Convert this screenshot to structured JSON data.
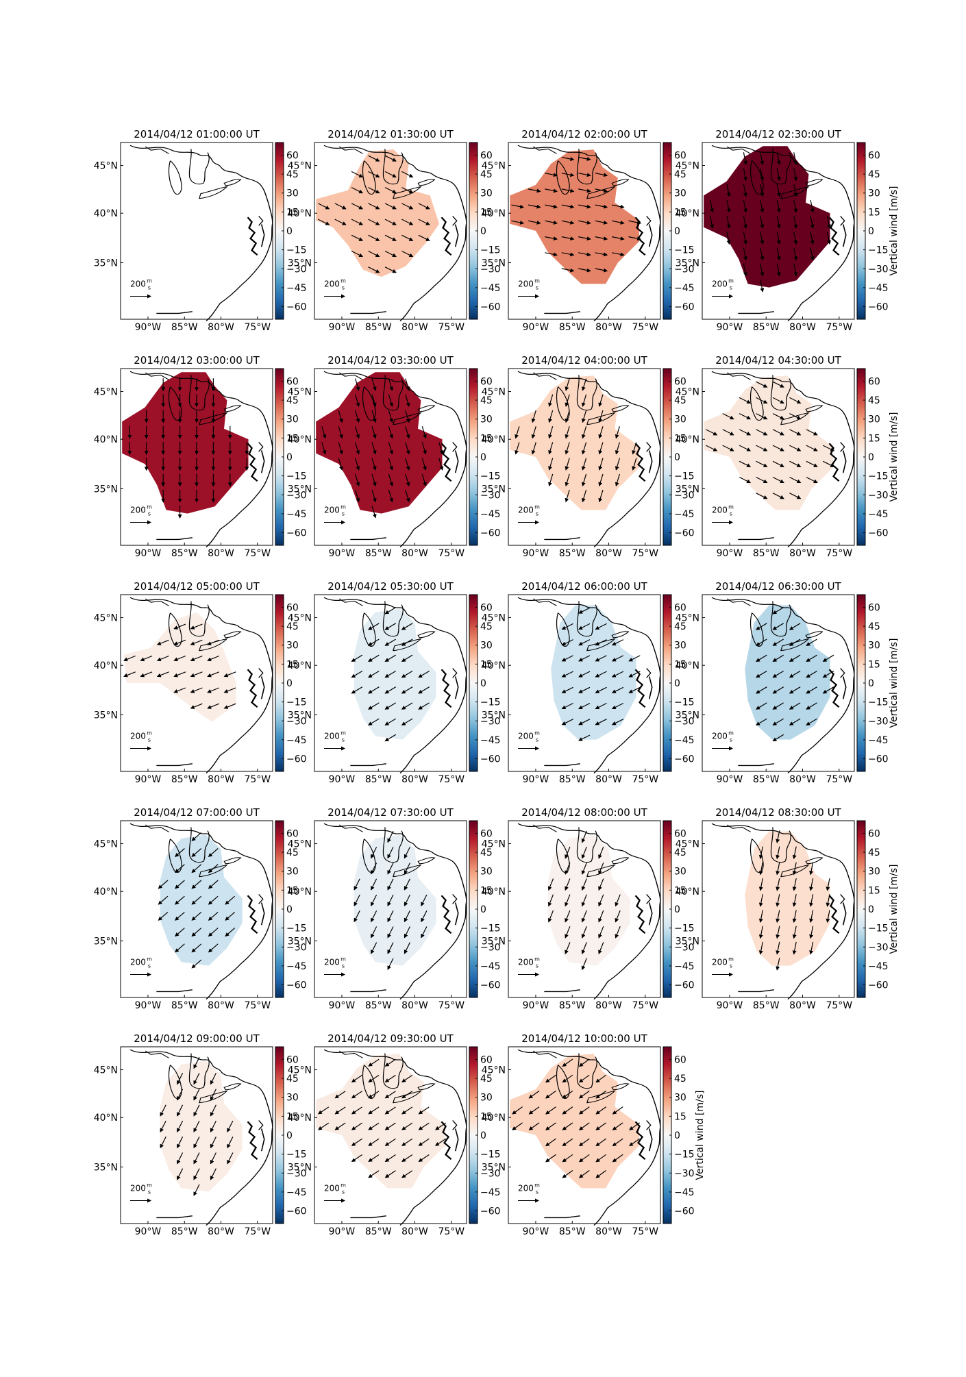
{
  "figure": {
    "colorbar_label": "Vertical wind [m/s]",
    "colorbar_ticks": [
      "60",
      "45",
      "30",
      "15",
      "0",
      "−15",
      "−30",
      "−45",
      "−60"
    ],
    "colorbar_tick_values": [
      60,
      45,
      30,
      15,
      0,
      -15,
      -30,
      -45,
      -60
    ],
    "colorbar_range": [
      -70,
      70
    ],
    "colormap": "RdBu_r",
    "lat_ticks": [
      "45°N",
      "40°N",
      "35°N"
    ],
    "lon_ticks": [
      "90°W",
      "85°W",
      "80°W",
      "75°W"
    ],
    "scale_label": "200",
    "scale_unit_num": "m",
    "scale_unit_den": "s"
  },
  "chart_data": [
    {
      "type": "heatmap",
      "title": "2014/04/12 01:00:00 UT",
      "vertical_wind": null,
      "wind_dir": null,
      "coverage": "none",
      "xlim": [
        -94,
        -74
      ],
      "ylim": [
        31,
        47.5
      ]
    },
    {
      "type": "heatmap",
      "title": "2014/04/12 01:30:00 UT",
      "vertical_wind": 20,
      "wind_dir": [
        1,
        -0.5
      ],
      "coverage": "north",
      "xlim": [
        -94,
        -74
      ],
      "ylim": [
        31,
        47.5
      ]
    },
    {
      "type": "heatmap",
      "title": "2014/04/12 02:00:00 UT",
      "vertical_wind": 35,
      "wind_dir": [
        1,
        -0.2
      ],
      "coverage": "full",
      "xlim": [
        -94,
        -74
      ],
      "ylim": [
        31,
        47.5
      ]
    },
    {
      "type": "heatmap",
      "title": "2014/04/12 02:30:00 UT",
      "vertical_wind": 70,
      "wind_dir": [
        0.2,
        -1
      ],
      "coverage": "big",
      "xlim": [
        -94,
        -74
      ],
      "ylim": [
        31,
        47.5
      ]
    },
    {
      "type": "heatmap",
      "title": "2014/04/12 03:00:00 UT",
      "vertical_wind": 60,
      "wind_dir": [
        0,
        -1
      ],
      "coverage": "big",
      "xlim": [
        -94,
        -74
      ],
      "ylim": [
        31,
        47.5
      ]
    },
    {
      "type": "heatmap",
      "title": "2014/04/12 03:30:00 UT",
      "vertical_wind": 60,
      "wind_dir": [
        0.3,
        -1
      ],
      "coverage": "big",
      "xlim": [
        -94,
        -74
      ],
      "ylim": [
        31,
        47.5
      ]
    },
    {
      "type": "heatmap",
      "title": "2014/04/12 04:00:00 UT",
      "vertical_wind": 15,
      "wind_dir": [
        -0.3,
        -1
      ],
      "coverage": "full",
      "xlim": [
        -94,
        -74
      ],
      "ylim": [
        31,
        47.5
      ]
    },
    {
      "type": "heatmap",
      "title": "2014/04/12 04:30:00 UT",
      "vertical_wind": 8,
      "wind_dir": [
        1,
        -0.5
      ],
      "coverage": "full",
      "xlim": [
        -94,
        -74
      ],
      "ylim": [
        31,
        47.5
      ]
    },
    {
      "type": "heatmap",
      "title": "2014/04/12 05:00:00 UT",
      "vertical_wind": 5,
      "wind_dir": [
        -1,
        -0.4
      ],
      "coverage": "west",
      "xlim": [
        -94,
        -74
      ],
      "ylim": [
        31,
        47.5
      ]
    },
    {
      "type": "heatmap",
      "title": "2014/04/12 05:30:00 UT",
      "vertical_wind": -8,
      "wind_dir": [
        -1,
        -0.6
      ],
      "coverage": "mid",
      "xlim": [
        -94,
        -74
      ],
      "ylim": [
        31,
        47.5
      ]
    },
    {
      "type": "heatmap",
      "title": "2014/04/12 06:00:00 UT",
      "vertical_wind": -15,
      "wind_dir": [
        -1,
        -0.5
      ],
      "coverage": "east",
      "xlim": [
        -94,
        -74
      ],
      "ylim": [
        31,
        47.5
      ]
    },
    {
      "type": "heatmap",
      "title": "2014/04/12 06:30:00 UT",
      "vertical_wind": -20,
      "wind_dir": [
        -1,
        -0.6
      ],
      "coverage": "east",
      "xlim": [
        -94,
        -74
      ],
      "ylim": [
        31,
        47.5
      ]
    },
    {
      "type": "heatmap",
      "title": "2014/04/12 07:00:00 UT",
      "vertical_wind": -15,
      "wind_dir": [
        -0.8,
        -0.7
      ],
      "coverage": "mid",
      "xlim": [
        -94,
        -74
      ],
      "ylim": [
        31,
        47.5
      ]
    },
    {
      "type": "heatmap",
      "title": "2014/04/12 07:30:00 UT",
      "vertical_wind": -6,
      "wind_dir": [
        -0.5,
        -1
      ],
      "coverage": "mid",
      "xlim": [
        -94,
        -74
      ],
      "ylim": [
        31,
        47.5
      ]
    },
    {
      "type": "heatmap",
      "title": "2014/04/12 08:00:00 UT",
      "vertical_wind": 3,
      "wind_dir": [
        -0.4,
        -1
      ],
      "coverage": "mid",
      "xlim": [
        -94,
        -74
      ],
      "ylim": [
        31,
        47.5
      ]
    },
    {
      "type": "heatmap",
      "title": "2014/04/12 08:30:00 UT",
      "vertical_wind": 12,
      "wind_dir": [
        -0.2,
        -1
      ],
      "coverage": "east",
      "xlim": [
        -94,
        -74
      ],
      "ylim": [
        31,
        47.5
      ]
    },
    {
      "type": "heatmap",
      "title": "2014/04/12 09:00:00 UT",
      "vertical_wind": 5,
      "wind_dir": [
        -0.5,
        -1
      ],
      "coverage": "mid",
      "xlim": [
        -94,
        -74
      ],
      "ylim": [
        31,
        47.5
      ]
    },
    {
      "type": "heatmap",
      "title": "2014/04/12 09:30:00 UT",
      "vertical_wind": 6,
      "wind_dir": [
        -0.6,
        -0.4
      ],
      "coverage": "full",
      "xlim": [
        -94,
        -74
      ],
      "ylim": [
        31,
        47.5
      ]
    },
    {
      "type": "heatmap",
      "title": "2014/04/12 10:00:00 UT",
      "vertical_wind": 16,
      "wind_dir": [
        -0.7,
        -0.5
      ],
      "coverage": "full",
      "xlim": [
        -94,
        -74
      ],
      "ylim": [
        31,
        47.5
      ]
    }
  ]
}
